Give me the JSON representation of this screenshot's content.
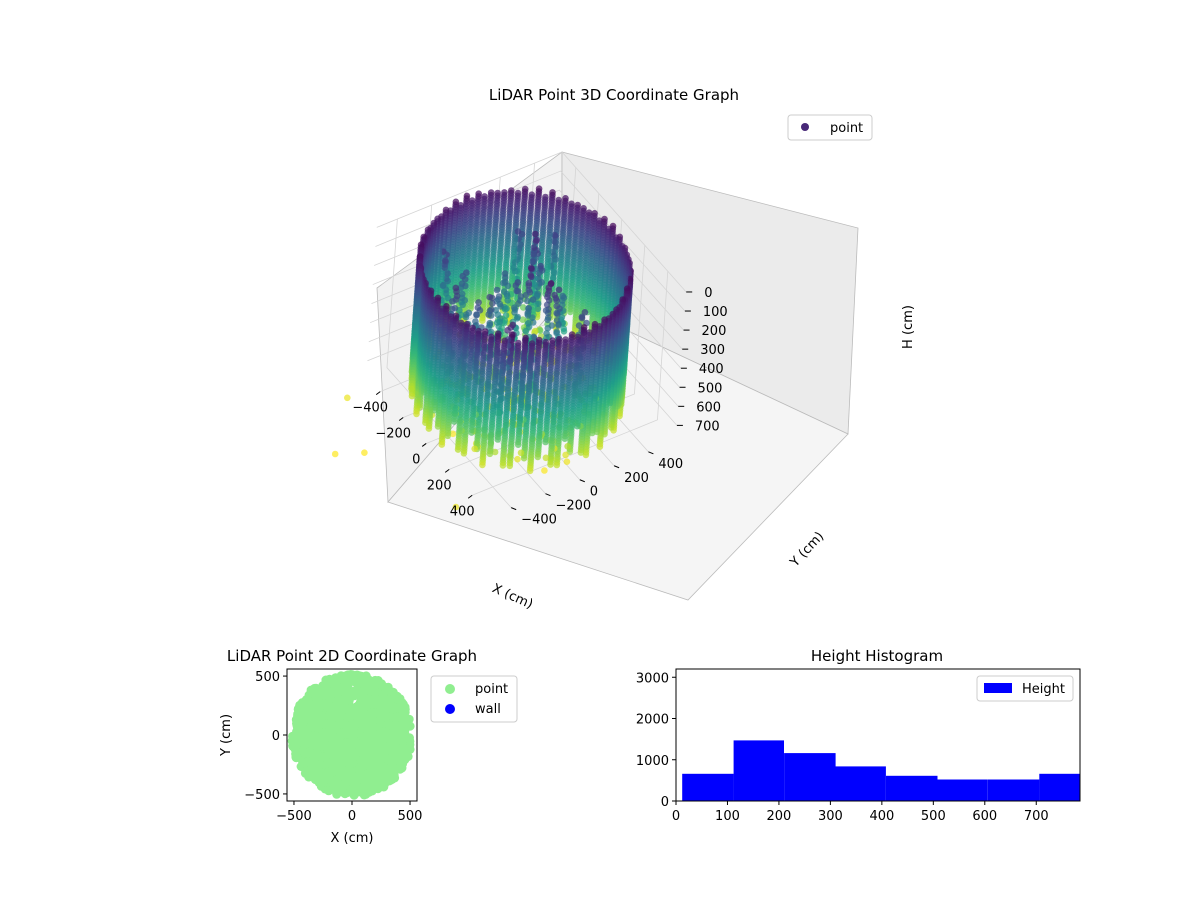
{
  "chart_data": [
    {
      "type": "scatter",
      "projection": "3d",
      "title": "LiDAR Point 3D Coordinate Graph",
      "xlabel": "X (cm)",
      "ylabel": "Y (cm)",
      "zlabel": "H (cm)",
      "xlim": [
        -520,
        560
      ],
      "ylim": [
        -520,
        560
      ],
      "zlim": [
        780,
        0
      ],
      "xticks": [
        -400,
        -200,
        0,
        200,
        400
      ],
      "yticks": [
        -400,
        -200,
        0,
        200,
        400
      ],
      "zticks": [
        0,
        100,
        200,
        300,
        400,
        500,
        600,
        700
      ],
      "grid": true,
      "colormap": "viridis",
      "legend": {
        "placement": "top-right",
        "entries": [
          {
            "label": "point",
            "color": "#482878"
          }
        ]
      },
      "series": [
        {
          "name": "point",
          "description_of_values": "wall ring of radius ~510 cm, heights 0-780 cm",
          "ring_radius": 510,
          "height_range": [
            0,
            780
          ],
          "outliers": [
            {
              "x": -520,
              "y": 560,
              "h": 600
            },
            {
              "x": -420,
              "y": -700,
              "h": 760
            },
            {
              "x": -90,
              "y": -820,
              "h": 780
            },
            {
              "x": -150,
              "y": -950,
              "h": 780
            },
            {
              "x": 450,
              "y": -650,
              "h": 760
            }
          ]
        }
      ]
    },
    {
      "type": "scatter",
      "title": "LiDAR Point 2D Coordinate Graph",
      "xlabel": "X (cm)",
      "ylabel": "Y (cm)",
      "xlim": [
        -560,
        560
      ],
      "ylim": [
        -560,
        560
      ],
      "xticks": [
        -500,
        0,
        500
      ],
      "yticks": [
        -500,
        0,
        500
      ],
      "legend": {
        "placement": "outside-right",
        "entries": [
          {
            "label": "point",
            "color": "#90ee90"
          },
          {
            "label": "wall",
            "color": "#0000ff"
          }
        ]
      },
      "series": [
        {
          "name": "point",
          "color": "#90ee90",
          "description_of_values": "dense disc of points, radius ~510 cm"
        },
        {
          "name": "wall",
          "color": "#0000ff",
          "values": []
        }
      ]
    },
    {
      "type": "bar",
      "subtype": "histogram",
      "title": "Height Histogram",
      "xlim": [
        0,
        785
      ],
      "ylim": [
        0,
        3200
      ],
      "xticks": [
        0,
        100,
        200,
        300,
        400,
        500,
        600,
        700
      ],
      "yticks": [
        0,
        1000,
        2000,
        3000
      ],
      "legend": {
        "placement": "top-right",
        "entries": [
          {
            "label": "Height",
            "color": "#0000ff"
          }
        ]
      },
      "bins": [
        {
          "x0": 12,
          "x1": 112,
          "count": 660
        },
        {
          "x0": 112,
          "x1": 210,
          "count": 1470
        },
        {
          "x0": 210,
          "x1": 310,
          "count": 1160
        },
        {
          "x0": 310,
          "x1": 408,
          "count": 840
        },
        {
          "x0": 408,
          "x1": 508,
          "count": 610
        },
        {
          "x0": 508,
          "x1": 606,
          "count": 520
        },
        {
          "x0": 606,
          "x1": 706,
          "count": 520
        },
        {
          "x0": 706,
          "x1": 785,
          "count": 660
        }
      ],
      "series": [
        {
          "name": "Height",
          "color": "#0000ff"
        }
      ]
    }
  ]
}
